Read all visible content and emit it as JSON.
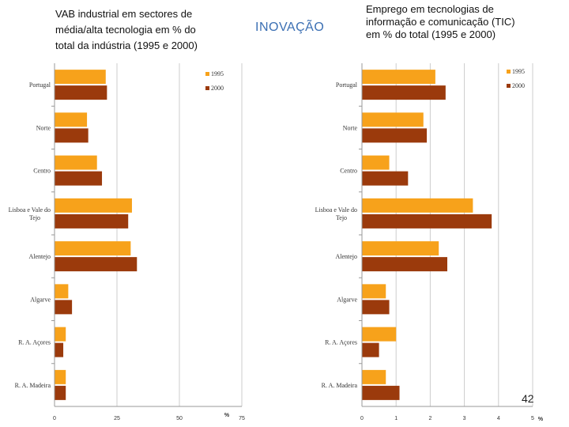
{
  "header": {
    "left_title": "VAB industrial em sectores de\nmédia/alta tecnologia em % do\ntotal da indústria (1995 e 2000)",
    "center_title": "INOVAÇÃO",
    "right_title": "Emprego em tecnologias de\ninformação e comunicação (TIC)\nem % do total (1995 e 2000)",
    "page_number": "42"
  },
  "colors": {
    "s1995": "#f7a21b",
    "s2000": "#9b3a0c",
    "grid": "#cccccc",
    "axis": "#999999"
  },
  "chart_data": [
    {
      "type": "bar",
      "orientation": "horizontal",
      "title": "VAB industrial em sectores de média/alta tecnologia em % do total da indústria (1995 e 2000)",
      "xlabel": "%",
      "xlim": [
        0,
        75
      ],
      "xticks": [
        "0",
        "25",
        "50",
        "75"
      ],
      "categories": [
        "Portugal",
        "Norte",
        "Centro",
        "Lisboa e Vale do\nTejo",
        "Alentejo",
        "Algarve",
        "R. A. Açores",
        "R. A. Madeira"
      ],
      "series": [
        {
          "name": "1995",
          "values": [
            20.5,
            13,
            17,
            31,
            30.5,
            5.5,
            4.5,
            4.5
          ]
        },
        {
          "name": "2000",
          "values": [
            21,
            13.5,
            19,
            29.5,
            33,
            7,
            3.5,
            4.5
          ]
        }
      ],
      "legend": "top-right"
    },
    {
      "type": "bar",
      "orientation": "horizontal",
      "title": "Emprego em tecnologias de informação e comunicação (TIC) em % do total (1995 e 2000)",
      "xlabel": "%",
      "xlim": [
        0,
        5
      ],
      "xticks": [
        "0",
        "1",
        "2",
        "3",
        "4",
        "5"
      ],
      "categories": [
        "Portugal",
        "Norte",
        "Centro",
        "Lisboa e Vale do\nTejo",
        "Alentejo",
        "Algarve",
        "R. A. Açores",
        "R. A. Madeira"
      ],
      "series": [
        {
          "name": "1995",
          "values": [
            2.15,
            1.8,
            0.8,
            3.25,
            2.25,
            0.7,
            1.0,
            0.7
          ]
        },
        {
          "name": "2000",
          "values": [
            2.45,
            1.9,
            1.35,
            3.8,
            2.5,
            0.8,
            0.5,
            1.1
          ]
        }
      ],
      "legend": "top-right"
    }
  ]
}
